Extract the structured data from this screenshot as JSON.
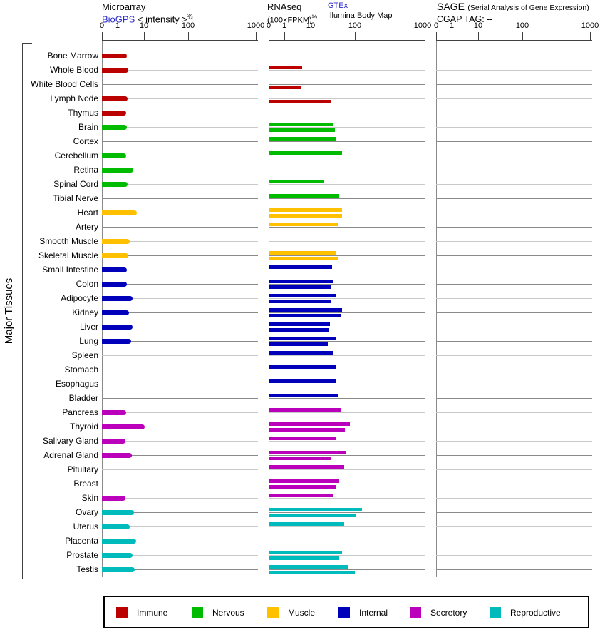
{
  "header": {
    "microarray": {
      "title": "Microarray",
      "link": "BioGPS",
      "intensity_label": "< intensity >",
      "intensity_sup": "⅔"
    },
    "rnaseq": {
      "title": "RNAseq",
      "formula": "(100×FPKM)",
      "formula_sup": "½",
      "source_gtex": "GTEx",
      "source_illumina": "Illumina Body Map"
    },
    "sage": {
      "title": "SAGE",
      "subtitle": "(Serial Analysis of Gene Expression)",
      "tag_line": "CGAP TAG:  --"
    }
  },
  "side_label": "Major Tissues",
  "group_colors": {
    "immune": "#bb0000",
    "nervous": "#00bb00",
    "muscle": "#ffc000",
    "internal": "#0000bb",
    "secretory": "#bb00bb",
    "reproductive": "#00bbbb"
  },
  "legend": [
    {
      "label": "Immune",
      "color": "#bb0000"
    },
    {
      "label": "Nervous",
      "color": "#00bb00"
    },
    {
      "label": "Muscle",
      "color": "#ffc000"
    },
    {
      "label": "Internal",
      "color": "#0000bb"
    },
    {
      "label": "Secretory",
      "color": "#bb00bb"
    },
    {
      "label": "Reproductive",
      "color": "#00bbbb"
    }
  ],
  "chart_data": {
    "type": "bar",
    "orientation": "horizontal",
    "axis": {
      "ticks": [
        0,
        1,
        10,
        100,
        1000
      ],
      "scale": "compressed log (intensity^(2/3)-style), shared by all three panels",
      "grid": false
    },
    "panels": [
      "Microarray (BioGPS)",
      "RNAseq GTEx (upper bar)",
      "RNAseq Illumina Body Map (lower bar)",
      "SAGE (no data, CGAP TAG: --)"
    ],
    "tissues": [
      {
        "name": "Bone Marrow",
        "group": "immune",
        "microarray": 2.2,
        "rnaseq_gtex": null,
        "rnaseq_illumina": null,
        "sage": null
      },
      {
        "name": "Whole Blood",
        "group": "immune",
        "microarray": 2.5,
        "rnaseq_gtex": 4.6,
        "rnaseq_illumina": null,
        "sage": null
      },
      {
        "name": "White Blood Cells",
        "group": "immune",
        "microarray": null,
        "rnaseq_gtex": null,
        "rnaseq_illumina": 4.3,
        "sage": null
      },
      {
        "name": "Lymph Node",
        "group": "immune",
        "microarray": 2.4,
        "rnaseq_gtex": null,
        "rnaseq_illumina": 29,
        "sage": null
      },
      {
        "name": "Thymus",
        "group": "immune",
        "microarray": 2.1,
        "rnaseq_gtex": null,
        "rnaseq_illumina": null,
        "sage": null
      },
      {
        "name": "Brain",
        "group": "nervous",
        "microarray": 2.2,
        "rnaseq_gtex": 32,
        "rnaseq_illumina": 35,
        "sage": null
      },
      {
        "name": "Cortex",
        "group": "nervous",
        "microarray": null,
        "rnaseq_gtex": 38,
        "rnaseq_illumina": null,
        "sage": null
      },
      {
        "name": "Cerebellum",
        "group": "nervous",
        "microarray": 2.1,
        "rnaseq_gtex": 51,
        "rnaseq_illumina": null,
        "sage": null
      },
      {
        "name": "Retina",
        "group": "nervous",
        "microarray": 3.9,
        "rnaseq_gtex": null,
        "rnaseq_illumina": null,
        "sage": null
      },
      {
        "name": "Spinal Cord",
        "group": "nervous",
        "microarray": 2.4,
        "rnaseq_gtex": 20,
        "rnaseq_illumina": null,
        "sage": null
      },
      {
        "name": "Tibial Nerve",
        "group": "nervous",
        "microarray": null,
        "rnaseq_gtex": 44,
        "rnaseq_illumina": null,
        "sage": null
      },
      {
        "name": "Heart",
        "group": "muscle",
        "microarray": 5.4,
        "rnaseq_gtex": 52,
        "rnaseq_illumina": 51,
        "sage": null
      },
      {
        "name": "Artery",
        "group": "muscle",
        "microarray": null,
        "rnaseq_gtex": 41,
        "rnaseq_illumina": null,
        "sage": null
      },
      {
        "name": "Smooth Muscle",
        "group": "muscle",
        "microarray": 2.9,
        "rnaseq_gtex": null,
        "rnaseq_illumina": null,
        "sage": null
      },
      {
        "name": "Skeletal Muscle",
        "group": "muscle",
        "microarray": 2.5,
        "rnaseq_gtex": 36,
        "rnaseq_illumina": 41,
        "sage": null
      },
      {
        "name": "Small Intestine",
        "group": "internal",
        "microarray": 2.2,
        "rnaseq_gtex": 30,
        "rnaseq_illumina": null,
        "sage": null
      },
      {
        "name": "Colon",
        "group": "internal",
        "microarray": 2.2,
        "rnaseq_gtex": 32,
        "rnaseq_illumina": 29,
        "sage": null
      },
      {
        "name": "Adipocyte",
        "group": "internal",
        "microarray": 3.7,
        "rnaseq_gtex": 38,
        "rnaseq_illumina": 29,
        "sage": null
      },
      {
        "name": "Kidney",
        "group": "internal",
        "microarray": 2.7,
        "rnaseq_gtex": 52,
        "rnaseq_illumina": 49,
        "sage": null
      },
      {
        "name": "Liver",
        "group": "internal",
        "microarray": 3.7,
        "rnaseq_gtex": 27,
        "rnaseq_illumina": 26,
        "sage": null
      },
      {
        "name": "Lung",
        "group": "internal",
        "microarray": 3.3,
        "rnaseq_gtex": 38,
        "rnaseq_illumina": 24,
        "sage": null
      },
      {
        "name": "Spleen",
        "group": "internal",
        "microarray": null,
        "rnaseq_gtex": 32,
        "rnaseq_illumina": null,
        "sage": null
      },
      {
        "name": "Stomach",
        "group": "internal",
        "microarray": null,
        "rnaseq_gtex": 38,
        "rnaseq_illumina": null,
        "sage": null
      },
      {
        "name": "Esophagus",
        "group": "internal",
        "microarray": null,
        "rnaseq_gtex": 38,
        "rnaseq_illumina": null,
        "sage": null
      },
      {
        "name": "Bladder",
        "group": "internal",
        "microarray": null,
        "rnaseq_gtex": 41,
        "rnaseq_illumina": null,
        "sage": null
      },
      {
        "name": "Pancreas",
        "group": "secretory",
        "microarray": 2.1,
        "rnaseq_gtex": 47,
        "rnaseq_illumina": null,
        "sage": null
      },
      {
        "name": "Thyroid",
        "group": "secretory",
        "microarray": 10.2,
        "rnaseq_gtex": 77,
        "rnaseq_illumina": 59,
        "sage": null
      },
      {
        "name": "Salivary Gland",
        "group": "secretory",
        "microarray": 2.0,
        "rnaseq_gtex": 38,
        "rnaseq_illumina": null,
        "sage": null
      },
      {
        "name": "Adrenal Gland",
        "group": "secretory",
        "microarray": 3.5,
        "rnaseq_gtex": 61,
        "rnaseq_illumina": 29,
        "sage": null
      },
      {
        "name": "Pituitary",
        "group": "secretory",
        "microarray": null,
        "rnaseq_gtex": 57,
        "rnaseq_illumina": null,
        "sage": null
      },
      {
        "name": "Breast",
        "group": "secretory",
        "microarray": null,
        "rnaseq_gtex": 44,
        "rnaseq_illumina": 38,
        "sage": null
      },
      {
        "name": "Skin",
        "group": "secretory",
        "microarray": 2.0,
        "rnaseq_gtex": 31,
        "rnaseq_illumina": null,
        "sage": null
      },
      {
        "name": "Ovary",
        "group": "reproductive",
        "microarray": 4.2,
        "rnaseq_gtex": 126,
        "rnaseq_illumina": 102,
        "sage": null
      },
      {
        "name": "Uterus",
        "group": "reproductive",
        "microarray": 2.9,
        "rnaseq_gtex": 57,
        "rnaseq_illumina": null,
        "sage": null
      },
      {
        "name": "Placenta",
        "group": "reproductive",
        "microarray": 5.1,
        "rnaseq_gtex": null,
        "rnaseq_illumina": null,
        "sage": null
      },
      {
        "name": "Prostate",
        "group": "reproductive",
        "microarray": 3.7,
        "rnaseq_gtex": 51,
        "rnaseq_illumina": 44,
        "sage": null
      },
      {
        "name": "Testis",
        "group": "reproductive",
        "microarray": 4.4,
        "rnaseq_gtex": 68,
        "rnaseq_illumina": 100,
        "sage": null
      }
    ]
  }
}
